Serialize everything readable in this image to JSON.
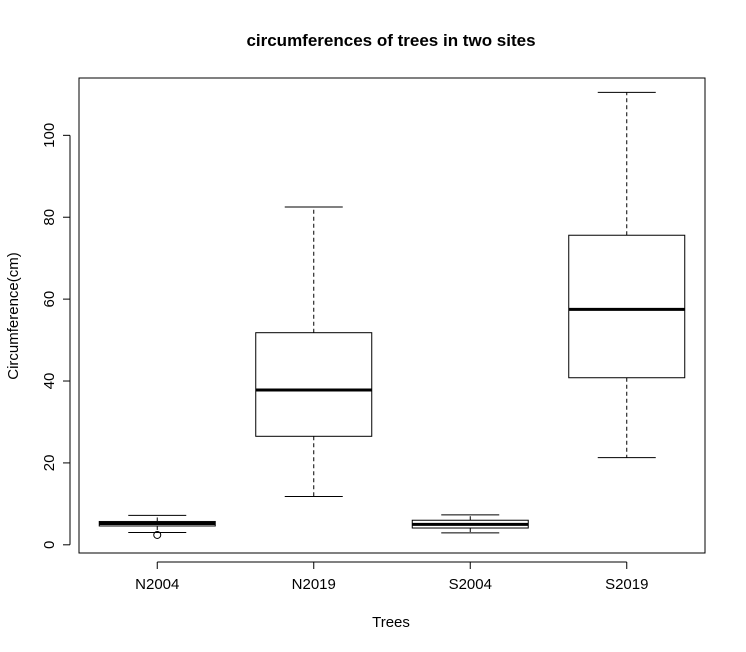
{
  "chart_data": {
    "type": "boxplot",
    "title": "circumferences of trees in two sites",
    "xlabel": "Trees",
    "ylabel": "Circumference(cm)",
    "ylim": [
      -2,
      114
    ],
    "yticks": [
      0,
      20,
      40,
      60,
      80,
      100
    ],
    "categories": [
      "N2004",
      "N2019",
      "S2004",
      "S2019"
    ],
    "boxes": [
      {
        "name": "N2004",
        "whisker_low": 3.0,
        "q1": 4.6,
        "median": 5.2,
        "q3": 5.7,
        "whisker_high": 7.2,
        "outliers": [
          2.4
        ]
      },
      {
        "name": "N2019",
        "whisker_low": 11.8,
        "q1": 26.5,
        "median": 37.8,
        "q3": 51.8,
        "whisker_high": 82.5,
        "outliers": []
      },
      {
        "name": "S2004",
        "whisker_low": 2.9,
        "q1": 4.1,
        "median": 5.0,
        "q3": 6.0,
        "whisker_high": 7.3,
        "outliers": []
      },
      {
        "name": "S2019",
        "whisker_low": 21.3,
        "q1": 40.8,
        "median": 57.5,
        "q3": 75.6,
        "whisker_high": 110.5,
        "outliers": []
      }
    ],
    "grid": false,
    "legend": "none"
  }
}
